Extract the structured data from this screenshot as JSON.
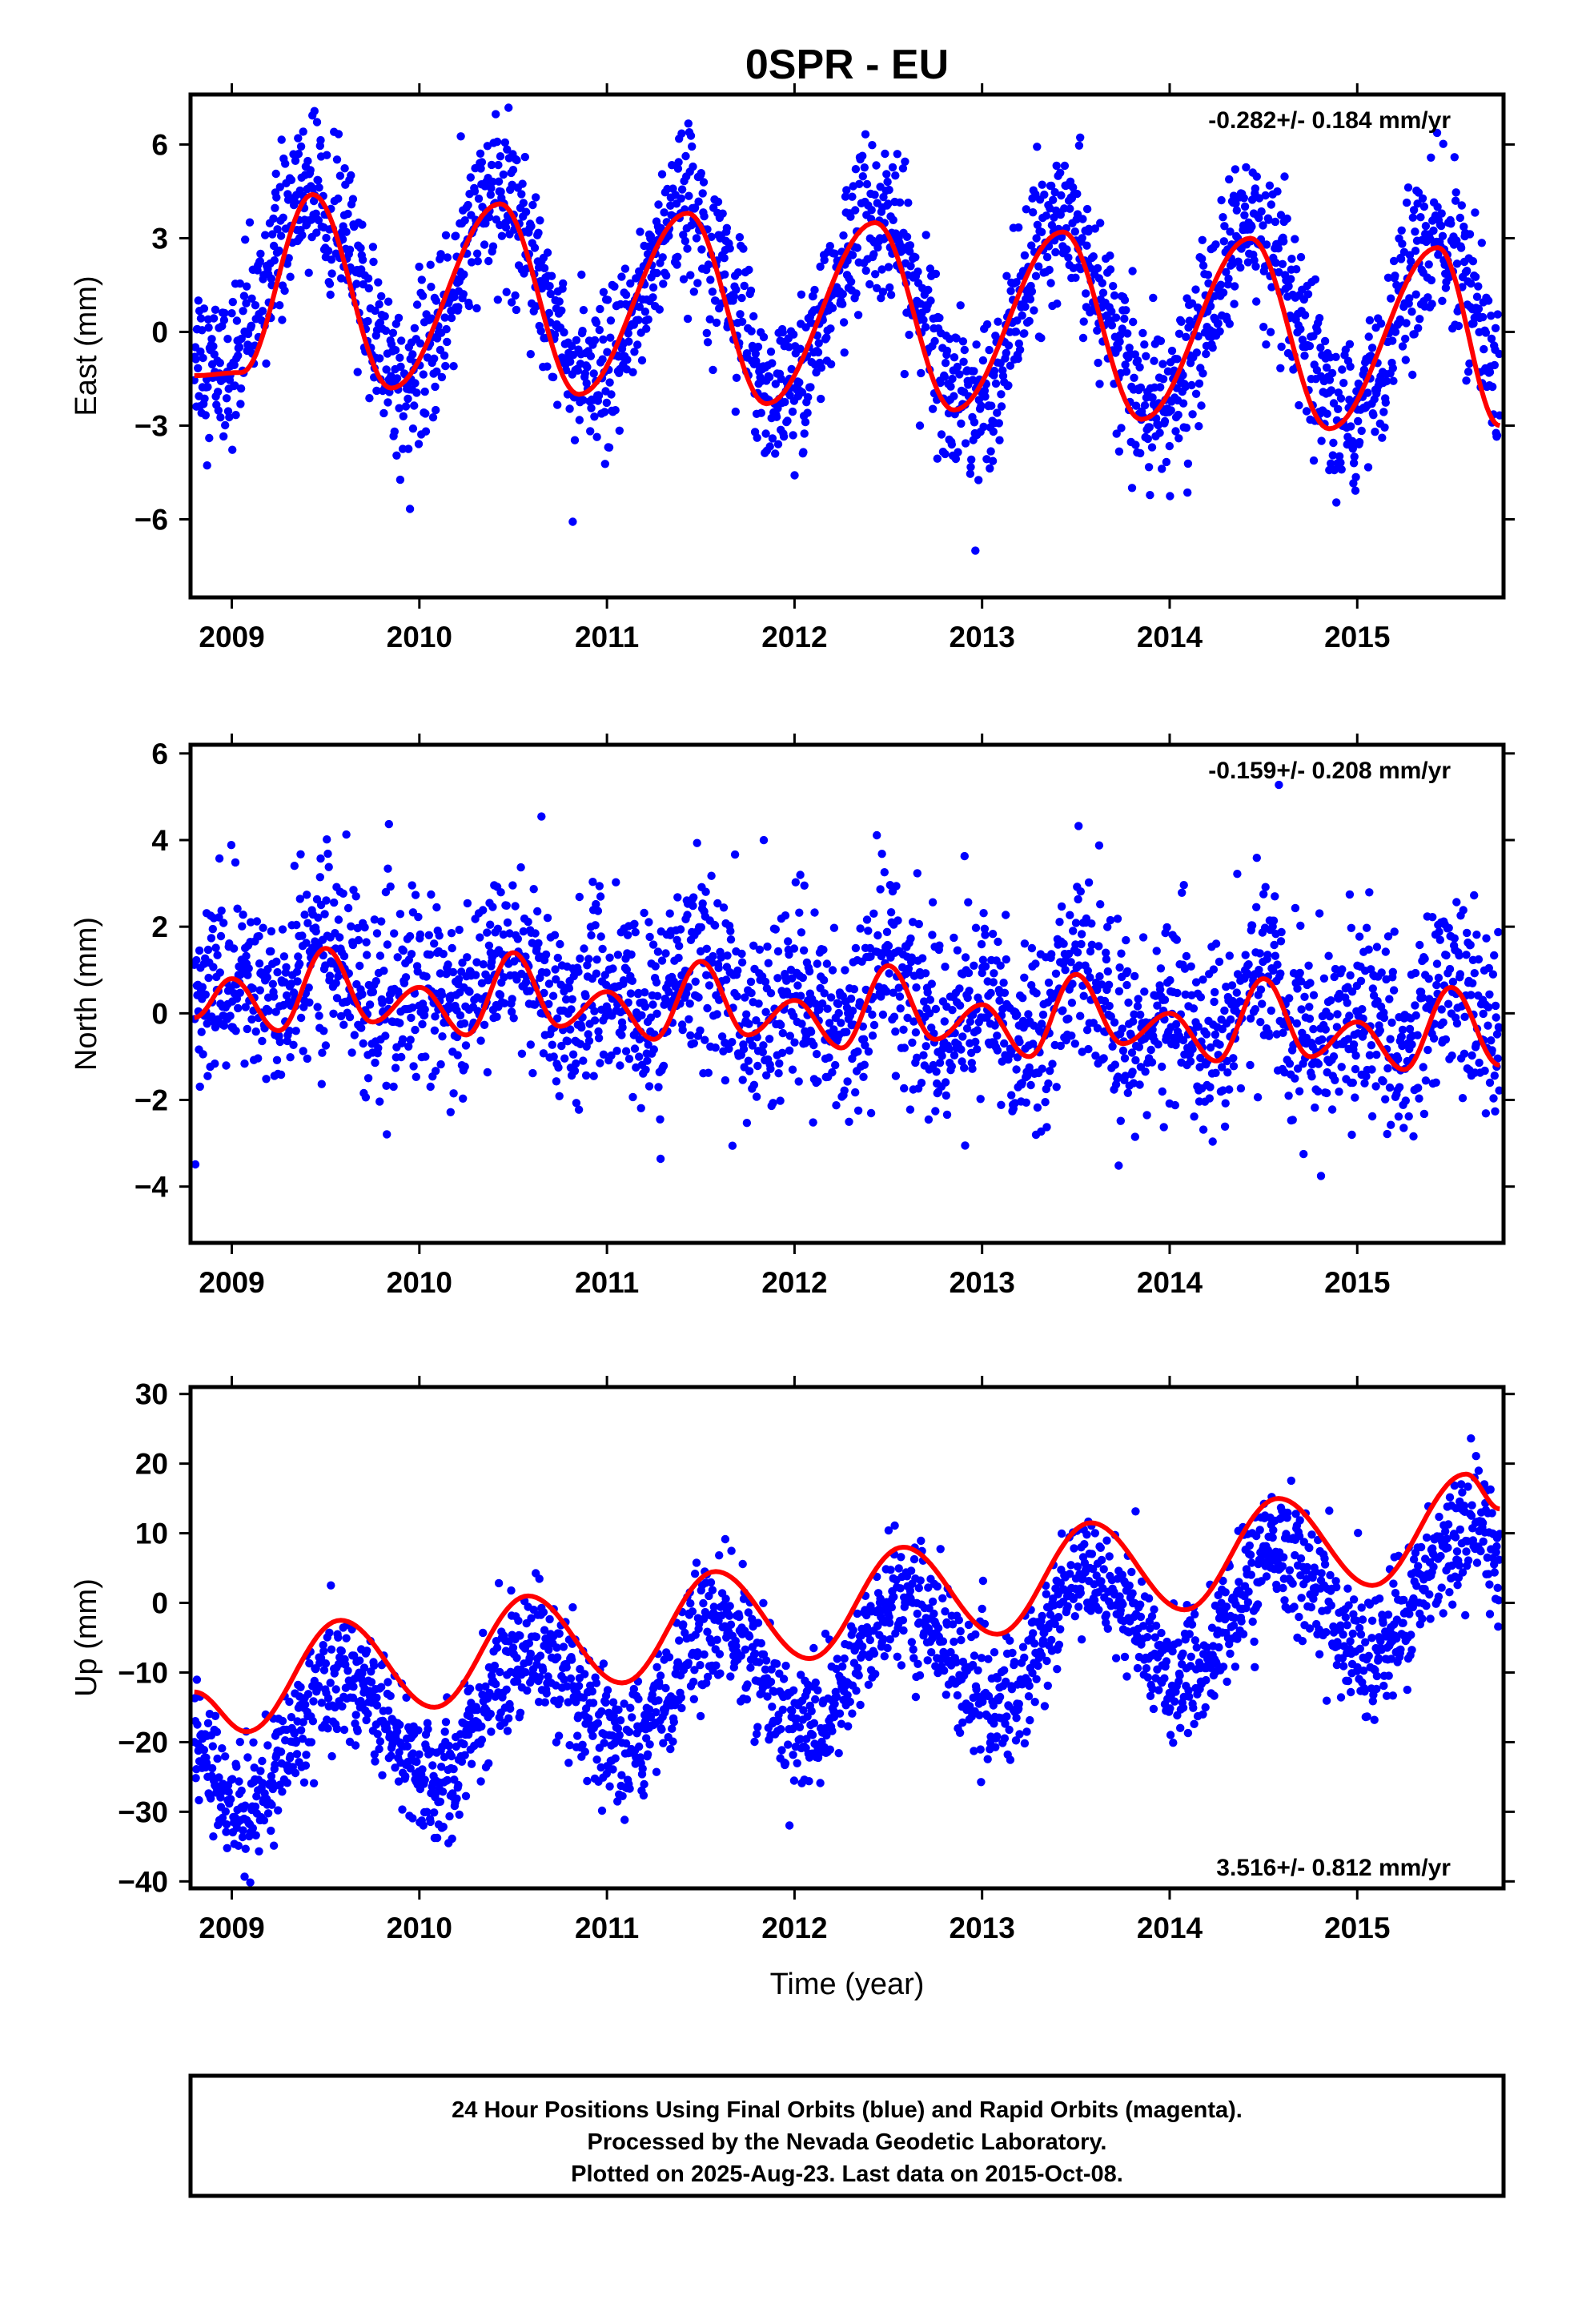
{
  "title": "0SPR - EU",
  "footer": {
    "lines": [
      "24 Hour Positions Using Final Orbits (blue) and Rapid Orbits (magenta).",
      "Processed by the Nevada Geodetic Laboratory.",
      "Plotted on 2025-Aug-23. Last data on 2015-Oct-08."
    ]
  },
  "colors": {
    "data": "#0000ff",
    "model": "#ff0000",
    "axis": "#000000"
  },
  "chart_data": [
    {
      "type": "scatter",
      "component": "East",
      "ylabel": "East (mm)",
      "xlabel": "",
      "rate_label": "-0.282+/- 0.184 mm/yr",
      "rate_position": "top-right",
      "xlim": [
        2008.78,
        2015.78
      ],
      "ylim": [
        -8.5,
        7.6
      ],
      "xticks": [
        2009,
        2010,
        2011,
        2012,
        2013,
        2014,
        2015
      ],
      "xtick_labels": [
        "2009",
        "2010",
        "2011",
        "2012",
        "2013",
        "2014",
        "2015"
      ],
      "yticks": [
        -6,
        -3,
        0,
        3,
        6
      ],
      "ytick_labels": [
        "−6",
        "−3",
        "0",
        "3",
        "6"
      ],
      "series": [
        {
          "name": "Final Orbits (blue)",
          "kind": "daily positions",
          "approx_model": {
            "trend_mm_per_yr": -0.282,
            "annual_amp": 3.0,
            "annual_peak_frac": 0.43,
            "offset": 0.9,
            "scatter_sd": 1.25
          }
        },
        {
          "kind": "fitted model",
          "curve_x": [
            2008.8,
            2009.05,
            2009.43,
            2009.85,
            2010.43,
            2010.85,
            2011.43,
            2011.85,
            2012.43,
            2012.85,
            2013.43,
            2013.85,
            2014.43,
            2014.85,
            2015.43,
            2015.76
          ],
          "curve_y": [
            -1.4,
            -1.3,
            4.4,
            -1.8,
            4.1,
            -2.0,
            3.8,
            -2.3,
            3.5,
            -2.5,
            3.2,
            -2.8,
            3.0,
            -3.1,
            2.7,
            -3.0
          ]
        }
      ]
    },
    {
      "type": "scatter",
      "component": "North",
      "ylabel": "North (mm)",
      "xlabel": "",
      "rate_label": "-0.159+/- 0.208 mm/yr",
      "rate_position": "top-right",
      "xlim": [
        2008.78,
        2015.78
      ],
      "ylim": [
        -5.3,
        6.2
      ],
      "xticks": [
        2009,
        2010,
        2011,
        2012,
        2013,
        2014,
        2015
      ],
      "xtick_labels": [
        "2009",
        "2010",
        "2011",
        "2012",
        "2013",
        "2014",
        "2015"
      ],
      "yticks": [
        -4,
        -2,
        0,
        2,
        4,
        6
      ],
      "ytick_labels": [
        "−4",
        "−2",
        "0",
        "2",
        "4",
        "6"
      ],
      "series": [
        {
          "name": "Final Orbits (blue)",
          "kind": "daily positions",
          "approx_model": {
            "trend_mm_per_yr": -0.159,
            "annual_amp": 0.45,
            "semiannual_amp": 0.55,
            "offset": 0.3,
            "scatter_sd": 1.1
          }
        },
        {
          "kind": "fitted model",
          "curve_x": [
            2008.8,
            2009.0,
            2009.25,
            2009.5,
            2009.75,
            2010.0,
            2010.25,
            2010.5,
            2010.75,
            2011.0,
            2011.25,
            2011.5,
            2011.75,
            2012.0,
            2012.25,
            2012.5,
            2012.75,
            2013.0,
            2013.25,
            2013.5,
            2013.75,
            2014.0,
            2014.25,
            2014.5,
            2014.75,
            2015.0,
            2015.25,
            2015.5,
            2015.76
          ],
          "curve_y": [
            -0.1,
            0.8,
            -0.4,
            1.5,
            -0.2,
            0.6,
            -0.5,
            1.4,
            -0.3,
            0.5,
            -0.6,
            1.2,
            -0.5,
            0.3,
            -0.8,
            1.1,
            -0.6,
            0.2,
            -1.0,
            0.9,
            -0.7,
            0.0,
            -1.1,
            0.8,
            -1.0,
            -0.2,
            -1.3,
            0.6,
            -1.2
          ]
        }
      ]
    },
    {
      "type": "scatter",
      "component": "Up",
      "ylabel": "Up (mm)",
      "xlabel": "Time (year)",
      "rate_label": "3.516+/- 0.812 mm/yr",
      "rate_position": "bottom-right",
      "xlim": [
        2008.78,
        2015.78
      ],
      "ylim": [
        -41,
        31
      ],
      "xticks": [
        2009,
        2010,
        2011,
        2012,
        2013,
        2014,
        2015
      ],
      "xtick_labels": [
        "2009",
        "2010",
        "2011",
        "2012",
        "2013",
        "2014",
        "2015"
      ],
      "yticks": [
        -40,
        -30,
        -20,
        -10,
        0,
        10,
        20,
        30
      ],
      "ytick_labels": [
        "−40",
        "−30",
        "−20",
        "−10",
        "0",
        "10",
        "20",
        "30"
      ],
      "series": [
        {
          "name": "Final Orbits (blue)",
          "kind": "daily positions",
          "approx_model": {
            "trend_mm_per_yr": 3.516,
            "annual_amp": 8.5,
            "annual_peak_frac": 0.58,
            "offset": -10.0,
            "scatter_sd": 4.5
          }
        },
        {
          "kind": "fitted model",
          "curve_x": [
            2008.8,
            2009.08,
            2009.58,
            2010.08,
            2010.58,
            2011.08,
            2011.58,
            2012.08,
            2012.58,
            2013.08,
            2013.58,
            2014.08,
            2014.58,
            2015.08,
            2015.58,
            2015.76
          ],
          "curve_y": [
            -12.8,
            -18.5,
            -2.5,
            -15.0,
            1.0,
            -11.5,
            4.5,
            -8.0,
            8.0,
            -4.5,
            11.5,
            -1.0,
            15.0,
            2.5,
            18.5,
            13.5
          ]
        }
      ]
    }
  ]
}
